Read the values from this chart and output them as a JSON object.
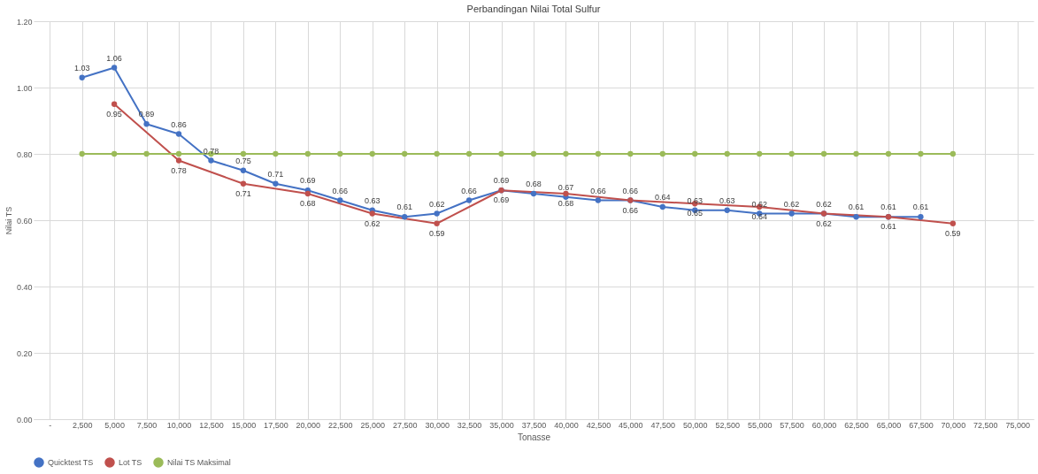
{
  "chart_data": {
    "type": "line",
    "title": "Perbandingan Nilai Total Sulfur",
    "xlabel": "Tonasse",
    "ylabel": "Nilai TS",
    "categories": [
      "-",
      "2,500",
      "5,000",
      "7,500",
      "10,000",
      "12,500",
      "15,000",
      "17,500",
      "20,000",
      "22,500",
      "25,000",
      "27,500",
      "30,000",
      "32,500",
      "35,000",
      "37,500",
      "40,000",
      "42,500",
      "45,000",
      "47,500",
      "50,000",
      "52,500",
      "55,000",
      "57,500",
      "60,000",
      "62,500",
      "65,000",
      "67,500",
      "70,000",
      "72,500",
      "75,000"
    ],
    "series": [
      {
        "name": "Quicktest TS",
        "color": "#4472c4",
        "values": [
          null,
          1.03,
          1.06,
          0.89,
          0.86,
          0.78,
          0.75,
          0.71,
          0.69,
          0.66,
          0.63,
          0.61,
          0.62,
          0.66,
          0.69,
          0.68,
          0.67,
          0.66,
          0.66,
          0.64,
          0.63,
          0.63,
          0.62,
          0.62,
          0.62,
          0.61,
          0.61,
          0.61,
          null,
          null,
          null
        ],
        "value_labels": [
          null,
          "1.03",
          "1.06",
          "0.89",
          "0.86",
          "0.78",
          "0.75",
          "0.71",
          "0.69",
          "0.66",
          "0.63",
          "0.61",
          "0.62",
          "0.66",
          "0.69",
          "0.68",
          "0.67",
          "0.66",
          "0.66",
          "0.64",
          "0.63",
          "0.63",
          "0.62",
          "0.62",
          "0.62",
          "0.61",
          "0.61",
          "0.61",
          null,
          null,
          null
        ]
      },
      {
        "name": "Lot TS",
        "color": "#c0504d",
        "values": [
          null,
          null,
          0.95,
          null,
          0.78,
          null,
          0.71,
          null,
          0.68,
          null,
          0.62,
          null,
          0.59,
          null,
          0.69,
          null,
          0.68,
          null,
          0.66,
          null,
          0.65,
          null,
          0.64,
          null,
          0.62,
          null,
          0.61,
          null,
          0.59,
          null,
          null
        ],
        "value_labels": [
          null,
          null,
          "0.95",
          null,
          "0.78",
          null,
          "0.71",
          null,
          "0.68",
          null,
          "0.62",
          null,
          "0.59",
          null,
          "0.69",
          null,
          "0.68",
          null,
          "0.66",
          null,
          "0.65",
          null,
          "0.64",
          null,
          "0.62",
          null,
          "0.61",
          null,
          "0.59",
          null,
          null
        ]
      },
      {
        "name": "Nilai TS Maksimal",
        "color": "#9bbb59",
        "values": [
          null,
          0.8,
          0.8,
          0.8,
          0.8,
          0.8,
          0.8,
          0.8,
          0.8,
          0.8,
          0.8,
          0.8,
          0.8,
          0.8,
          0.8,
          0.8,
          0.8,
          0.8,
          0.8,
          0.8,
          0.8,
          0.8,
          0.8,
          0.8,
          0.8,
          0.8,
          0.8,
          0.8,
          0.8,
          null,
          null
        ]
      }
    ],
    "ylim": [
      0,
      1.2
    ],
    "yticks": [
      {
        "value": 0,
        "label": "0.00"
      },
      {
        "value": 0.2,
        "label": "0.20"
      },
      {
        "value": 0.4,
        "label": "0.40"
      },
      {
        "value": 0.6,
        "label": "0.60"
      },
      {
        "value": 0.8,
        "label": "0.80"
      },
      {
        "value": 1.0,
        "label": "1.00"
      },
      {
        "value": 1.2,
        "label": "1.20"
      }
    ],
    "grid": true,
    "legend": "bottom",
    "marker": "circle",
    "line_style": "solid"
  }
}
